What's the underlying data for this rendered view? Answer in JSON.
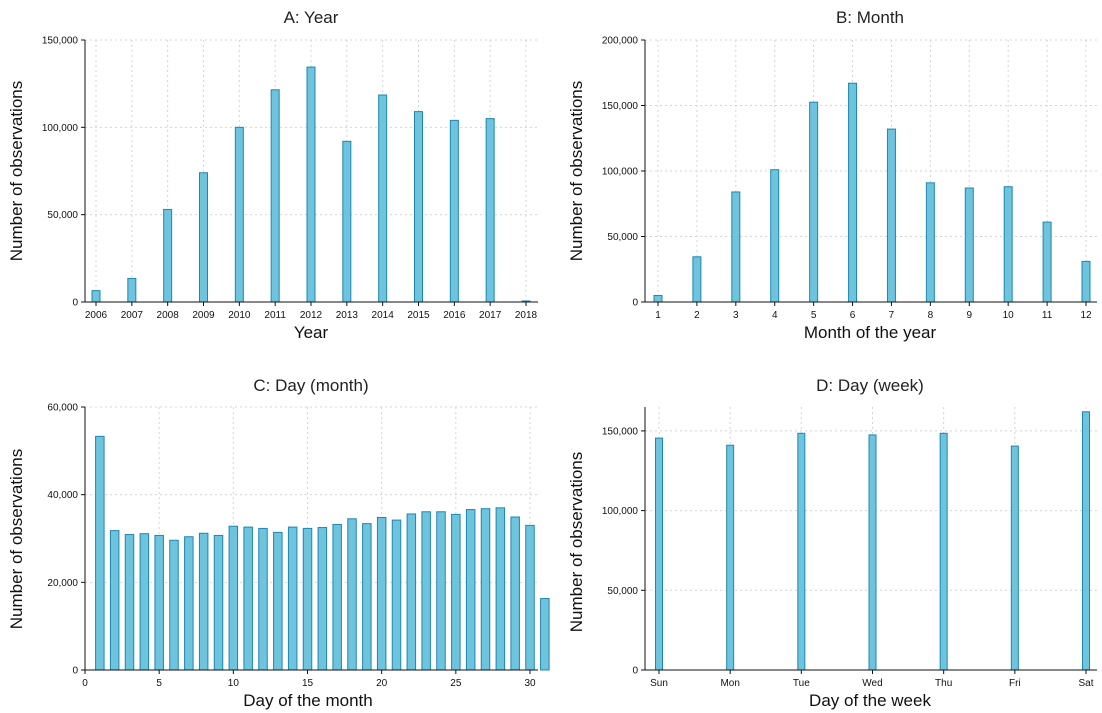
{
  "chart_data": [
    {
      "type": "bar",
      "title": "A: Year",
      "xlabel": "Year",
      "ylabel": "Number of observations",
      "categories": [
        "2006",
        "2007",
        "2008",
        "2009",
        "2010",
        "2011",
        "2012",
        "2013",
        "2014",
        "2015",
        "2016",
        "2017",
        "2018"
      ],
      "values": [
        6500,
        13500,
        53000,
        74000,
        100000,
        121500,
        134500,
        92000,
        118500,
        109000,
        104000,
        105000,
        600
      ],
      "ylim": [
        0,
        150000
      ],
      "yticks": [
        0,
        50000,
        100000,
        150000
      ],
      "ytick_labels": [
        "0",
        "50,000",
        "100,000",
        "150,000"
      ],
      "grid": true
    },
    {
      "type": "bar",
      "title": "B: Month",
      "xlabel": "Month of the year",
      "ylabel": "Number of observations",
      "categories": [
        "1",
        "2",
        "3",
        "4",
        "5",
        "6",
        "7",
        "8",
        "9",
        "10",
        "11",
        "12"
      ],
      "values": [
        5000,
        34500,
        84000,
        101000,
        152500,
        167000,
        132000,
        91000,
        87000,
        88000,
        61000,
        31000
      ],
      "ylim": [
        0,
        200000
      ],
      "yticks": [
        0,
        50000,
        100000,
        150000,
        200000
      ],
      "ytick_labels": [
        "0",
        "50,000",
        "100,000",
        "150,000",
        "200,000"
      ],
      "grid": true
    },
    {
      "type": "bar",
      "title": "C: Day (month)",
      "xlabel": "Day of the month",
      "ylabel": "Number of observations",
      "x": [
        1,
        2,
        3,
        4,
        5,
        6,
        7,
        8,
        9,
        10,
        11,
        12,
        13,
        14,
        15,
        16,
        17,
        18,
        19,
        20,
        21,
        22,
        23,
        24,
        25,
        26,
        27,
        28,
        29,
        30,
        31
      ],
      "values": [
        53300,
        31800,
        30900,
        31100,
        30700,
        29600,
        30400,
        31200,
        30700,
        32800,
        32600,
        32300,
        31400,
        32600,
        32300,
        32500,
        33200,
        34500,
        33400,
        34800,
        34200,
        35600,
        36100,
        36100,
        35500,
        36600,
        36800,
        37000,
        34900,
        33000,
        16300
      ],
      "xlim": [
        0,
        31
      ],
      "xticks": [
        0,
        5,
        10,
        15,
        20,
        25,
        30
      ],
      "ylim": [
        0,
        60000
      ],
      "yticks": [
        0,
        20000,
        40000,
        60000
      ],
      "ytick_labels": [
        "0",
        "20,000",
        "40,000",
        "60,000"
      ],
      "grid": true
    },
    {
      "type": "bar",
      "title": "D: Day (week)",
      "xlabel": "Day of the week",
      "ylabel": "Number of observations",
      "categories": [
        "Sun",
        "Mon",
        "Tue",
        "Wed",
        "Thu",
        "Fri",
        "Sat"
      ],
      "values": [
        145500,
        141000,
        148500,
        147500,
        148500,
        140500,
        162000
      ],
      "ylim": [
        0,
        165000
      ],
      "yticks": [
        0,
        50000,
        100000,
        150000
      ],
      "ytick_labels": [
        "0",
        "50,000",
        "100,000",
        "150,000"
      ],
      "grid": true
    }
  ]
}
